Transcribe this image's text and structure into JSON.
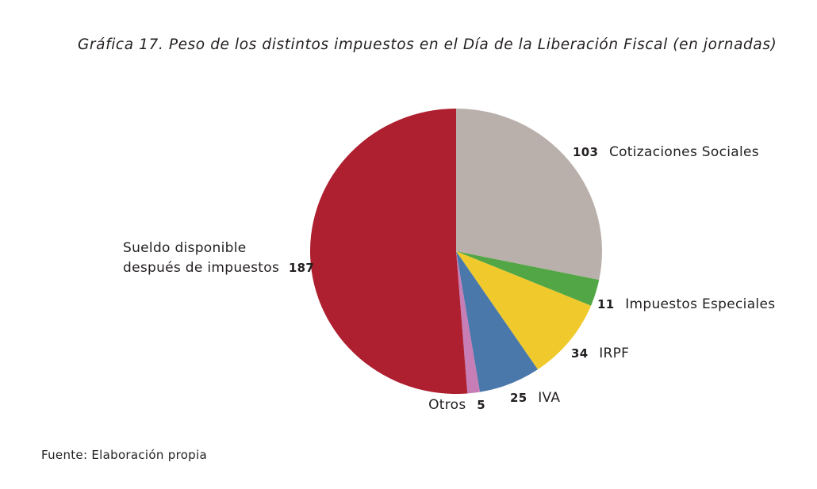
{
  "chart_data": {
    "type": "pie",
    "title": "Gráfica 17. Peso de los distintos impuestos en el Día de la Liberación Fiscal (en jornadas)",
    "source": "Fuente: Elaboración propia",
    "slices": [
      {
        "label": "Cotizaciones Sociales",
        "value": 103,
        "color": "#bab0ab"
      },
      {
        "label": "Impuestos Especiales",
        "value": 11,
        "color": "#52a646"
      },
      {
        "label": "IRPF",
        "value": 34,
        "color": "#f0c92d"
      },
      {
        "label": "IVA",
        "value": 25,
        "color": "#4a78aa"
      },
      {
        "label": "Otros",
        "value": 5,
        "color": "#c77db5"
      },
      {
        "label_lines": [
          "Sueldo disponible",
          "después de impuestos"
        ],
        "value": 187,
        "color": "#ae1f2f"
      }
    ]
  }
}
